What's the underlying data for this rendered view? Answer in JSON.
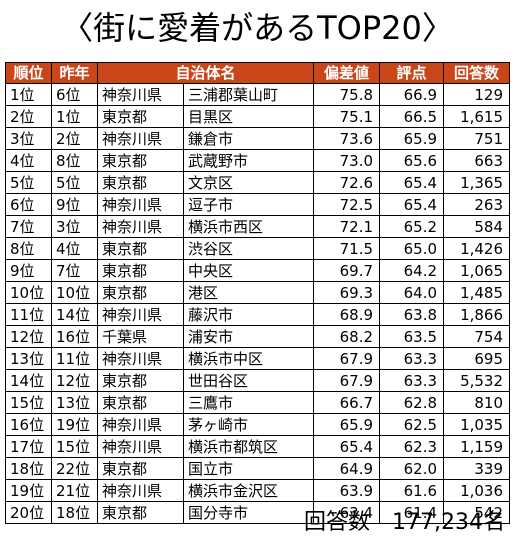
{
  "title": "〈街に愛着があるTOP20〉",
  "columns": [
    "順位",
    "昨年",
    "自治体名",
    "",
    "偏差値",
    "評点",
    "回答数"
  ],
  "rows": [
    {
      "rank": "1位",
      "prev": "6位",
      "pref": "神奈川県",
      "city": "三浦郡葉山町",
      "score": "75.8",
      "rating": "66.9",
      "count": "129"
    },
    {
      "rank": "2位",
      "prev": "1位",
      "pref": "東京都",
      "city": "目黒区",
      "score": "75.1",
      "rating": "66.5",
      "count": "1,615"
    },
    {
      "rank": "3位",
      "prev": "2位",
      "pref": "神奈川県",
      "city": "鎌倉市",
      "score": "73.6",
      "rating": "65.9",
      "count": "751"
    },
    {
      "rank": "4位",
      "prev": "8位",
      "pref": "東京都",
      "city": "武蔵野市",
      "score": "73.0",
      "rating": "65.6",
      "count": "663"
    },
    {
      "rank": "5位",
      "prev": "5位",
      "pref": "東京都",
      "city": "文京区",
      "score": "72.6",
      "rating": "65.4",
      "count": "1,365"
    },
    {
      "rank": "6位",
      "prev": "9位",
      "pref": "神奈川県",
      "city": "逗子市",
      "score": "72.5",
      "rating": "65.4",
      "count": "263"
    },
    {
      "rank": "7位",
      "prev": "3位",
      "pref": "神奈川県",
      "city": "横浜市西区",
      "score": "72.1",
      "rating": "65.2",
      "count": "584"
    },
    {
      "rank": "8位",
      "prev": "4位",
      "pref": "東京都",
      "city": "渋谷区",
      "score": "71.5",
      "rating": "65.0",
      "count": "1,426"
    },
    {
      "rank": "9位",
      "prev": "7位",
      "pref": "東京都",
      "city": "中央区",
      "score": "69.7",
      "rating": "64.2",
      "count": "1,065"
    },
    {
      "rank": "10位",
      "prev": "10位",
      "pref": "東京都",
      "city": "港区",
      "score": "69.3",
      "rating": "64.0",
      "count": "1,485"
    },
    {
      "rank": "11位",
      "prev": "14位",
      "pref": "神奈川県",
      "city": "藤沢市",
      "score": "68.9",
      "rating": "63.8",
      "count": "1,866"
    },
    {
      "rank": "12位",
      "prev": "16位",
      "pref": "千葉県",
      "city": "浦安市",
      "score": "68.2",
      "rating": "63.5",
      "count": "754"
    },
    {
      "rank": "13位",
      "prev": "11位",
      "pref": "神奈川県",
      "city": "横浜市中区",
      "score": "67.9",
      "rating": "63.3",
      "count": "695"
    },
    {
      "rank": "14位",
      "prev": "12位",
      "pref": "東京都",
      "city": "世田谷区",
      "score": "67.9",
      "rating": "63.3",
      "count": "5,532"
    },
    {
      "rank": "15位",
      "prev": "13位",
      "pref": "東京都",
      "city": "三鷹市",
      "score": "66.7",
      "rating": "62.8",
      "count": "810"
    },
    {
      "rank": "16位",
      "prev": "19位",
      "pref": "神奈川県",
      "city": "茅ヶ崎市",
      "score": "65.9",
      "rating": "62.5",
      "count": "1,035"
    },
    {
      "rank": "17位",
      "prev": "15位",
      "pref": "神奈川県",
      "city": "横浜市都筑区",
      "score": "65.4",
      "rating": "62.3",
      "count": "1,159"
    },
    {
      "rank": "18位",
      "prev": "22位",
      "pref": "東京都",
      "city": "国立市",
      "score": "64.9",
      "rating": "62.0",
      "count": "339"
    },
    {
      "rank": "19位",
      "prev": "21位",
      "pref": "神奈川県",
      "city": "横浜市金沢区",
      "score": "63.9",
      "rating": "61.6",
      "count": "1,036"
    },
    {
      "rank": "20位",
      "prev": "18位",
      "pref": "東京都",
      "city": "国分寺市",
      "score": "63.4",
      "rating": "61.4",
      "count": "542"
    }
  ],
  "footer": {
    "label": "回答数",
    "value": "177,234名"
  },
  "colors": {
    "header_bg": "#c8461a",
    "header_text": "#ffffff"
  }
}
